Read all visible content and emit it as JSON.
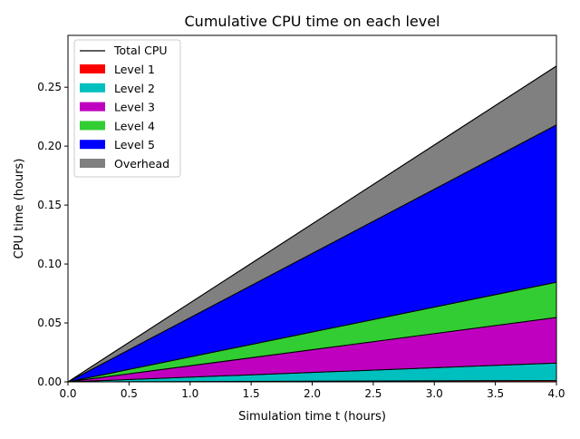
{
  "chart_data": {
    "type": "area",
    "stacked": true,
    "title": "Cumulative CPU time on each level",
    "xlabel": "Simulation time t (hours)",
    "ylabel": "CPU time (hours)",
    "xlim": [
      0,
      4
    ],
    "ylim": [
      0,
      0.294
    ],
    "xticks": [
      0,
      0.5,
      1,
      1.5,
      2,
      2.5,
      3,
      3.5,
      4
    ],
    "xtick_labels": [
      "0.0",
      "0.5",
      "1.0",
      "1.5",
      "2.0",
      "2.5",
      "3.0",
      "3.5",
      "4.0"
    ],
    "yticks": [
      0,
      0.05,
      0.1,
      0.15,
      0.2,
      0.25
    ],
    "ytick_labels": [
      "0.00",
      "0.05",
      "0.10",
      "0.15",
      "0.20",
      "0.25"
    ],
    "grid": false,
    "legend_position": "top-left",
    "x": [
      0,
      4
    ],
    "total": {
      "name": "Total CPU",
      "color": "#000000",
      "values": [
        0,
        0.268
      ]
    },
    "series": [
      {
        "name": "Level 1",
        "color": "#ff0000",
        "values": [
          0,
          0.0012
        ]
      },
      {
        "name": "Level 2",
        "color": "#00bfbf",
        "values": [
          0,
          0.0148
        ]
      },
      {
        "name": "Level 3",
        "color": "#bf00bf",
        "values": [
          0,
          0.0386
        ]
      },
      {
        "name": "Level 4",
        "color": "#32cd32",
        "values": [
          0,
          0.03
        ]
      },
      {
        "name": "Level 5",
        "color": "#0000ff",
        "values": [
          0,
          0.1334
        ]
      },
      {
        "name": "Overhead",
        "color": "#808080",
        "values": [
          0,
          0.05
        ]
      }
    ]
  }
}
